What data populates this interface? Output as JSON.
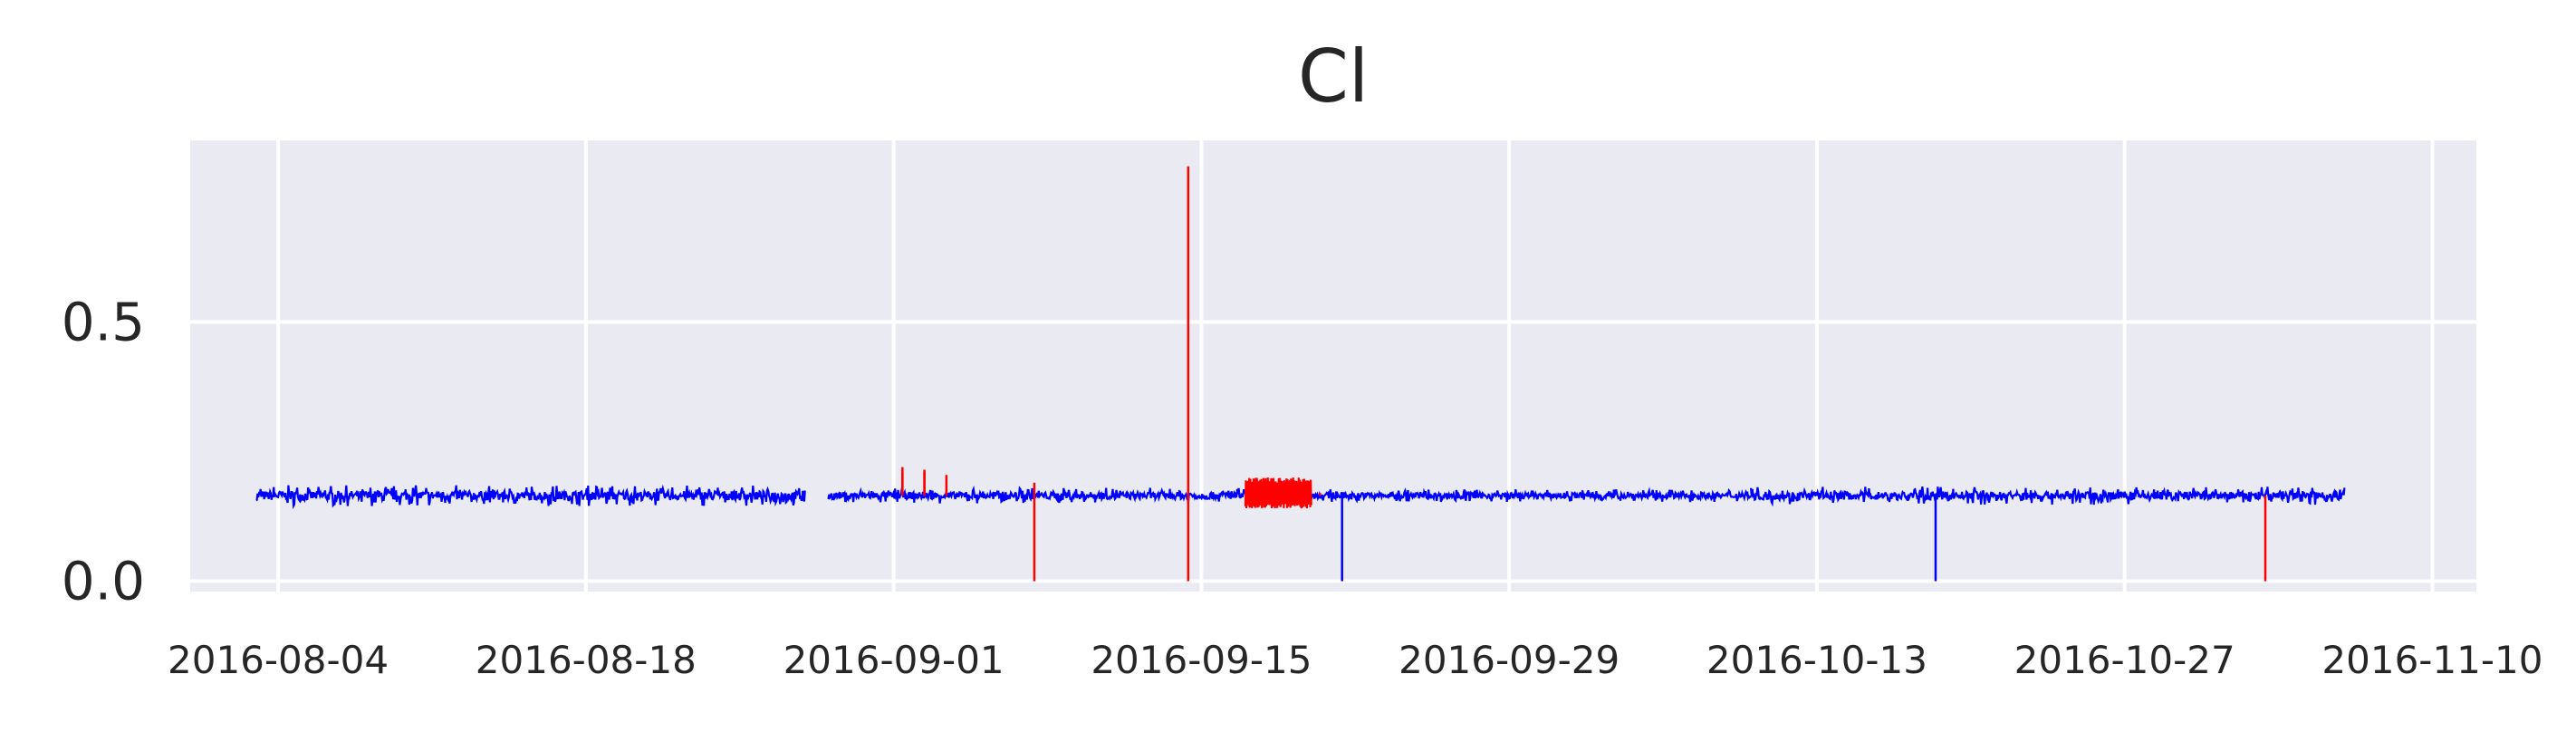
{
  "chart_data": {
    "type": "line",
    "title": "Cl",
    "xlabel": "",
    "ylabel": "",
    "xlim": [
      "2016-07-31",
      "2016-11-12"
    ],
    "ylim": [
      -0.02,
      0.85
    ],
    "grid": true,
    "legend": "none",
    "x_ticks": [
      "2016-08-04",
      "2016-08-18",
      "2016-09-01",
      "2016-09-15",
      "2016-09-29",
      "2016-10-13",
      "2016-10-27",
      "2016-11-10"
    ],
    "y_ticks": [
      {
        "value": 0.0,
        "label": "0.0"
      },
      {
        "value": 0.5,
        "label": "0.5"
      }
    ],
    "colors": {
      "background": "#eaeaf2",
      "grid": "#ffffff",
      "normal": "#0000ff",
      "anomaly": "#ff0000"
    },
    "series": [
      {
        "role": "normal",
        "color": "#0000ff",
        "baseline": 0.165,
        "band": [
          {
            "start": "2016-08-03",
            "end": "2016-08-28",
            "low": 0.145,
            "high": 0.185
          },
          {
            "start": "2016-08-29",
            "end": "2016-09-18",
            "low": 0.15,
            "high": 0.18
          },
          {
            "start": "2016-09-18",
            "end": "2016-10-10",
            "low": 0.155,
            "high": 0.18
          },
          {
            "start": "2016-10-10",
            "end": "2016-11-06",
            "low": 0.15,
            "high": 0.185
          }
        ],
        "gaps": [
          {
            "start": "2016-08-28",
            "end": "2016-08-29"
          }
        ],
        "spikes": [
          {
            "date": "2016-09-21",
            "value": 0.0
          },
          {
            "date": "2016-10-18",
            "value": 0.0
          }
        ]
      },
      {
        "role": "anomaly",
        "color": "#ff0000",
        "spikes": [
          {
            "date": "2016-09-01",
            "value": 0.21
          },
          {
            "date": "2016-09-01",
            "value": 0.22
          },
          {
            "date": "2016-09-02",
            "value": 0.215
          },
          {
            "date": "2016-09-02",
            "value": 0.21
          },
          {
            "date": "2016-09-03",
            "value": 0.205
          },
          {
            "date": "2016-09-07",
            "value": 0.0
          },
          {
            "date": "2016-09-07",
            "value": 0.19
          },
          {
            "date": "2016-09-14",
            "value": 0.0
          },
          {
            "date": "2016-09-14",
            "value": 0.8
          },
          {
            "date": "2016-09-20",
            "value": 0.17
          },
          {
            "date": "2016-11-02",
            "value": 0.0
          }
        ],
        "bursts": [
          {
            "start": "2016-09-17",
            "end": "2016-09-20",
            "low": 0.14,
            "high": 0.2
          }
        ]
      }
    ]
  }
}
